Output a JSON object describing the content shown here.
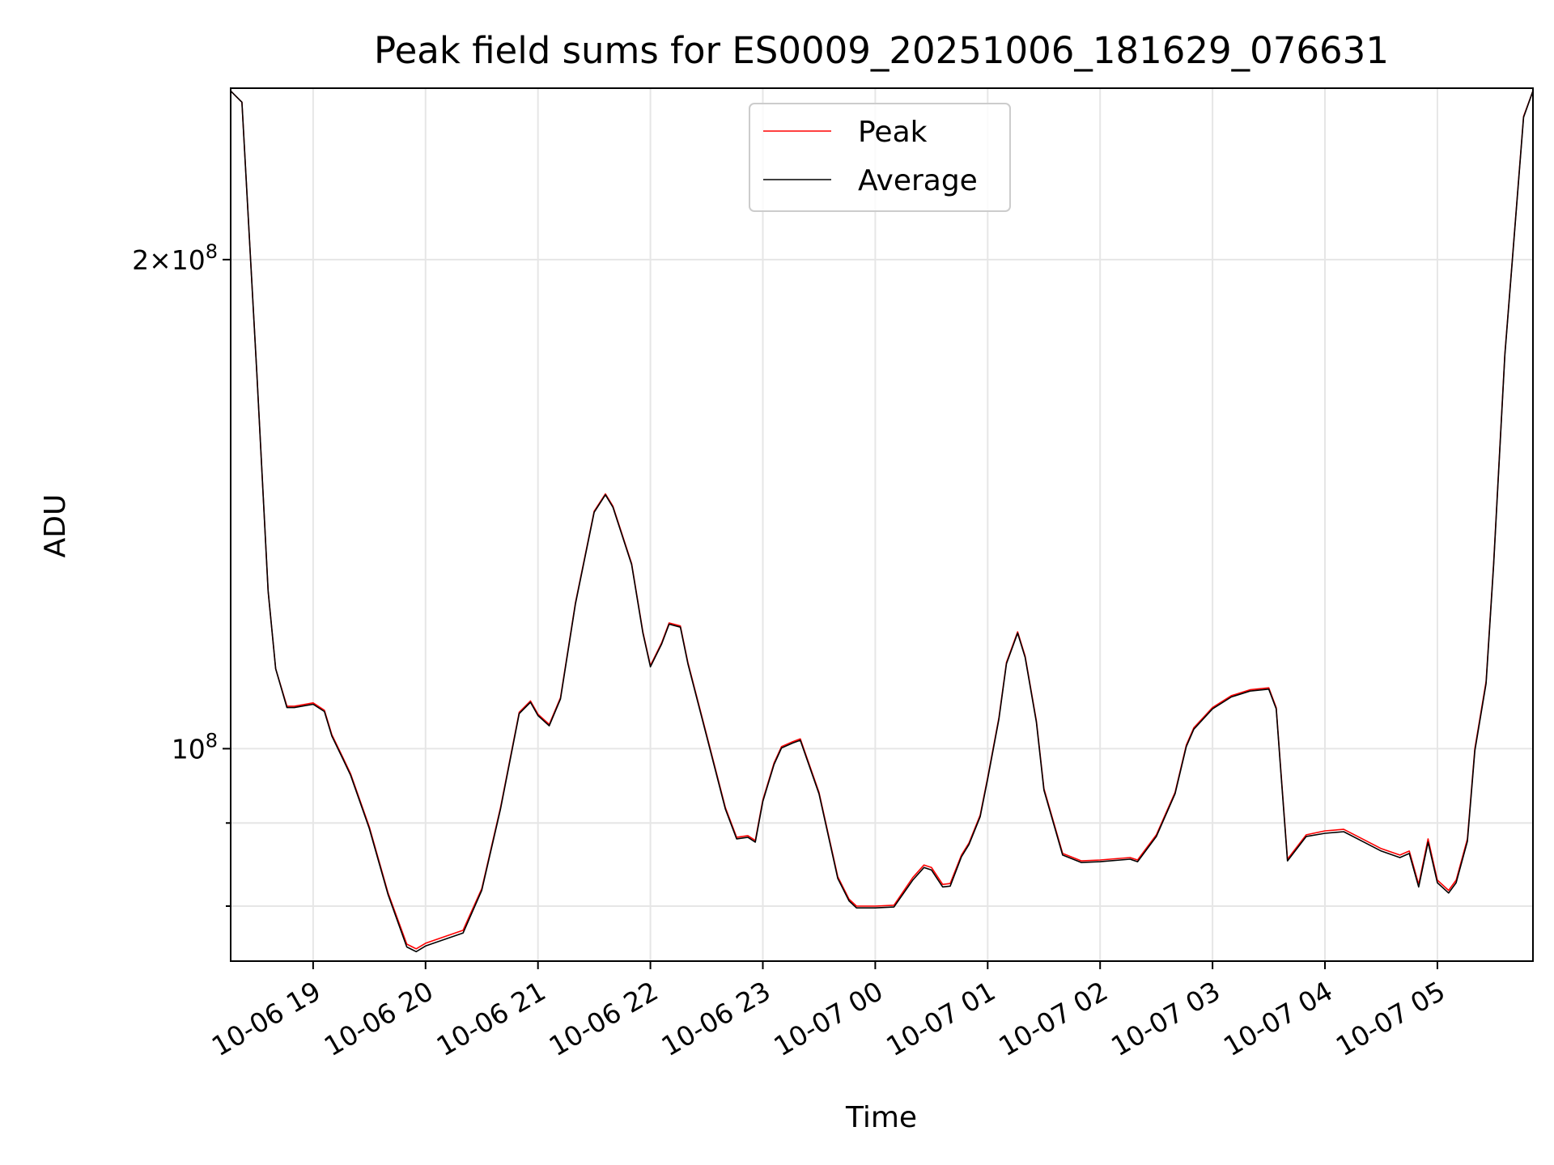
{
  "chart_data": {
    "type": "line",
    "title": "Peak field sums for ES0009_20251006_181629_076631",
    "xlabel": "Time",
    "ylabel": "ADU",
    "grid": true,
    "legend_position": "upper center",
    "yscale": "log",
    "xlim": [
      "2025-10-06 18:16",
      "2025-10-07 05:51"
    ],
    "ylim": [
      74000000,
      255000000
    ],
    "x_ticks": [
      "10-06 19",
      "10-06 20",
      "10-06 21",
      "10-06 22",
      "10-06 23",
      "10-07 00",
      "10-07 01",
      "10-07 02",
      "10-07 03",
      "10-07 04",
      "10-07 05"
    ],
    "y_major_ticks": [
      {
        "value": 100000000,
        "label": "10^8"
      },
      {
        "value": 200000000,
        "label": "2×10^8"
      }
    ],
    "y_minor_ticks": [
      80000000,
      90000000
    ],
    "series": [
      {
        "name": "Peak",
        "color": "#ff0000",
        "x": [
          "2025-10-06 18:16",
          "2025-10-06 18:22",
          "2025-10-06 18:30",
          "2025-10-06 18:36",
          "2025-10-06 18:40",
          "2025-10-06 18:46",
          "2025-10-06 18:50",
          "2025-10-06 19:00",
          "2025-10-06 19:06",
          "2025-10-06 19:10",
          "2025-10-06 19:16",
          "2025-10-06 19:20",
          "2025-10-06 19:30",
          "2025-10-06 19:40",
          "2025-10-06 19:50",
          "2025-10-06 19:55",
          "2025-10-06 20:00",
          "2025-10-06 20:10",
          "2025-10-06 20:20",
          "2025-10-06 20:30",
          "2025-10-06 20:40",
          "2025-10-06 20:50",
          "2025-10-06 20:56",
          "2025-10-06 21:00",
          "2025-10-06 21:06",
          "2025-10-06 21:12",
          "2025-10-06 21:20",
          "2025-10-06 21:30",
          "2025-10-06 21:36",
          "2025-10-06 21:40",
          "2025-10-06 21:50",
          "2025-10-06 21:56",
          "2025-10-06 22:00",
          "2025-10-06 22:06",
          "2025-10-06 22:10",
          "2025-10-06 22:16",
          "2025-10-06 22:20",
          "2025-10-06 22:30",
          "2025-10-06 22:40",
          "2025-10-06 22:46",
          "2025-10-06 22:52",
          "2025-10-06 22:56",
          "2025-10-06 23:00",
          "2025-10-06 23:06",
          "2025-10-06 23:10",
          "2025-10-06 23:16",
          "2025-10-06 23:20",
          "2025-10-06 23:30",
          "2025-10-06 23:36",
          "2025-10-06 23:40",
          "2025-10-06 23:46",
          "2025-10-06 23:50",
          "2025-10-07 00:00",
          "2025-10-07 00:10",
          "2025-10-07 00:20",
          "2025-10-07 00:26",
          "2025-10-07 00:30",
          "2025-10-07 00:36",
          "2025-10-07 00:40",
          "2025-10-07 00:46",
          "2025-10-07 00:50",
          "2025-10-07 00:56",
          "2025-10-07 01:00",
          "2025-10-07 01:06",
          "2025-10-07 01:10",
          "2025-10-07 01:16",
          "2025-10-07 01:20",
          "2025-10-07 01:26",
          "2025-10-07 01:30",
          "2025-10-07 01:40",
          "2025-10-07 01:50",
          "2025-10-07 02:00",
          "2025-10-07 02:16",
          "2025-10-07 02:20",
          "2025-10-07 02:30",
          "2025-10-07 02:40",
          "2025-10-07 02:46",
          "2025-10-07 02:50",
          "2025-10-07 03:00",
          "2025-10-07 03:10",
          "2025-10-07 03:20",
          "2025-10-07 03:30",
          "2025-10-07 03:34",
          "2025-10-07 03:36",
          "2025-10-07 03:40",
          "2025-10-07 03:50",
          "2025-10-07 04:00",
          "2025-10-07 04:10",
          "2025-10-07 04:20",
          "2025-10-07 04:30",
          "2025-10-07 04:40",
          "2025-10-07 04:45",
          "2025-10-07 04:50",
          "2025-10-07 04:55",
          "2025-10-07 05:00",
          "2025-10-07 05:06",
          "2025-10-07 05:10",
          "2025-10-07 05:16",
          "2025-10-07 05:20",
          "2025-10-07 05:26",
          "2025-10-07 05:30",
          "2025-10-07 05:36",
          "2025-10-07 05:40",
          "2025-10-07 05:46",
          "2025-10-07 05:51"
        ],
        "values": [
          254000000,
          250000000,
          170000000,
          125000000,
          112000000,
          106200000,
          106200000,
          106700000,
          105600000,
          102000000,
          98700000,
          96500000,
          89500000,
          81500000,
          75800000,
          75300000,
          75900000,
          76600000,
          77300000,
          82000000,
          92000000,
          105300000,
          107000000,
          105000000,
          103500000,
          107500000,
          123000000,
          140000000,
          143500000,
          141000000,
          130000000,
          118000000,
          112500000,
          116200000,
          119500000,
          119000000,
          113000000,
          102000000,
          92000000,
          88200000,
          88400000,
          87800000,
          93000000,
          98000000,
          100300000,
          101000000,
          101400000,
          94000000,
          87500000,
          83400000,
          80800000,
          80000000,
          80000000,
          80100000,
          83300000,
          84800000,
          84500000,
          82500000,
          82600000,
          86000000,
          87500000,
          91000000,
          96000000,
          104500000,
          113000000,
          118000000,
          114000000,
          104000000,
          94500000,
          86200000,
          85300000,
          85400000,
          85700000,
          85400000,
          88500000,
          94000000,
          100500000,
          103000000,
          106000000,
          107800000,
          108700000,
          109000000,
          106000000,
          98500000,
          85500000,
          88500000,
          89000000,
          89200000,
          88000000,
          86800000,
          86000000,
          86500000,
          82500000,
          88000000,
          83000000,
          81800000,
          83000000,
          88000000,
          100000000,
          110000000,
          130000000,
          175000000,
          200000000,
          245000000,
          254000000
        ]
      },
      {
        "name": "Average",
        "color": "#000000",
        "x": [
          "2025-10-06 18:16",
          "2025-10-06 18:22",
          "2025-10-06 18:30",
          "2025-10-06 18:36",
          "2025-10-06 18:40",
          "2025-10-06 18:46",
          "2025-10-06 18:50",
          "2025-10-06 19:00",
          "2025-10-06 19:06",
          "2025-10-06 19:10",
          "2025-10-06 19:16",
          "2025-10-06 19:20",
          "2025-10-06 19:30",
          "2025-10-06 19:40",
          "2025-10-06 19:50",
          "2025-10-06 19:55",
          "2025-10-06 20:00",
          "2025-10-06 20:10",
          "2025-10-06 20:20",
          "2025-10-06 20:30",
          "2025-10-06 20:40",
          "2025-10-06 20:50",
          "2025-10-06 20:56",
          "2025-10-06 21:00",
          "2025-10-06 21:06",
          "2025-10-06 21:12",
          "2025-10-06 21:20",
          "2025-10-06 21:30",
          "2025-10-06 21:36",
          "2025-10-06 21:40",
          "2025-10-06 21:50",
          "2025-10-06 21:56",
          "2025-10-06 22:00",
          "2025-10-06 22:06",
          "2025-10-06 22:10",
          "2025-10-06 22:16",
          "2025-10-06 22:20",
          "2025-10-06 22:30",
          "2025-10-06 22:40",
          "2025-10-06 22:46",
          "2025-10-06 22:52",
          "2025-10-06 22:56",
          "2025-10-06 23:00",
          "2025-10-06 23:06",
          "2025-10-06 23:10",
          "2025-10-06 23:16",
          "2025-10-06 23:20",
          "2025-10-06 23:30",
          "2025-10-06 23:36",
          "2025-10-06 23:40",
          "2025-10-06 23:46",
          "2025-10-06 23:50",
          "2025-10-07 00:00",
          "2025-10-07 00:10",
          "2025-10-07 00:20",
          "2025-10-07 00:26",
          "2025-10-07 00:30",
          "2025-10-07 00:36",
          "2025-10-07 00:40",
          "2025-10-07 00:46",
          "2025-10-07 00:50",
          "2025-10-07 00:56",
          "2025-10-07 01:00",
          "2025-10-07 01:06",
          "2025-10-07 01:10",
          "2025-10-07 01:16",
          "2025-10-07 01:20",
          "2025-10-07 01:26",
          "2025-10-07 01:30",
          "2025-10-07 01:40",
          "2025-10-07 01:50",
          "2025-10-07 02:00",
          "2025-10-07 02:16",
          "2025-10-07 02:20",
          "2025-10-07 02:30",
          "2025-10-07 02:40",
          "2025-10-07 02:46",
          "2025-10-07 02:50",
          "2025-10-07 03:00",
          "2025-10-07 03:10",
          "2025-10-07 03:20",
          "2025-10-07 03:30",
          "2025-10-07 03:34",
          "2025-10-07 03:36",
          "2025-10-07 03:40",
          "2025-10-07 03:50",
          "2025-10-07 04:00",
          "2025-10-07 04:10",
          "2025-10-07 04:20",
          "2025-10-07 04:30",
          "2025-10-07 04:40",
          "2025-10-07 04:45",
          "2025-10-07 04:50",
          "2025-10-07 04:55",
          "2025-10-07 05:00",
          "2025-10-07 05:06",
          "2025-10-07 05:10",
          "2025-10-07 05:16",
          "2025-10-07 05:20",
          "2025-10-07 05:26",
          "2025-10-07 05:30",
          "2025-10-07 05:36",
          "2025-10-07 05:40",
          "2025-10-07 05:46",
          "2025-10-07 05:51"
        ],
        "values": [
          254000000,
          250000000,
          170000000,
          125000000,
          112000000,
          106000000,
          106000000,
          106500000,
          105400000,
          101800000,
          98500000,
          96300000,
          89300000,
          81300000,
          75500000,
          75000000,
          75600000,
          76300000,
          77000000,
          81800000,
          91800000,
          105100000,
          106800000,
          104800000,
          103300000,
          107300000,
          122800000,
          139800000,
          143300000,
          140800000,
          129800000,
          117800000,
          112300000,
          116000000,
          119300000,
          118800000,
          112800000,
          101800000,
          91800000,
          88000000,
          88200000,
          87600000,
          92800000,
          97800000,
          100100000,
          100800000,
          101200000,
          93800000,
          87300000,
          83200000,
          80600000,
          79800000,
          79800000,
          79900000,
          83000000,
          84500000,
          84200000,
          82200000,
          82300000,
          85800000,
          87300000,
          90800000,
          95800000,
          104300000,
          112800000,
          117800000,
          113800000,
          103800000,
          94300000,
          86000000,
          85100000,
          85200000,
          85500000,
          85200000,
          88300000,
          93800000,
          100300000,
          102800000,
          105800000,
          107600000,
          108500000,
          108800000,
          105800000,
          98300000,
          85300000,
          88300000,
          88700000,
          88900000,
          87700000,
          86500000,
          85700000,
          86200000,
          82200000,
          87600000,
          82700000,
          81500000,
          82700000,
          87700000,
          99700000,
          109700000,
          129700000,
          174700000,
          199700000,
          244700000,
          254000000
        ]
      }
    ]
  }
}
